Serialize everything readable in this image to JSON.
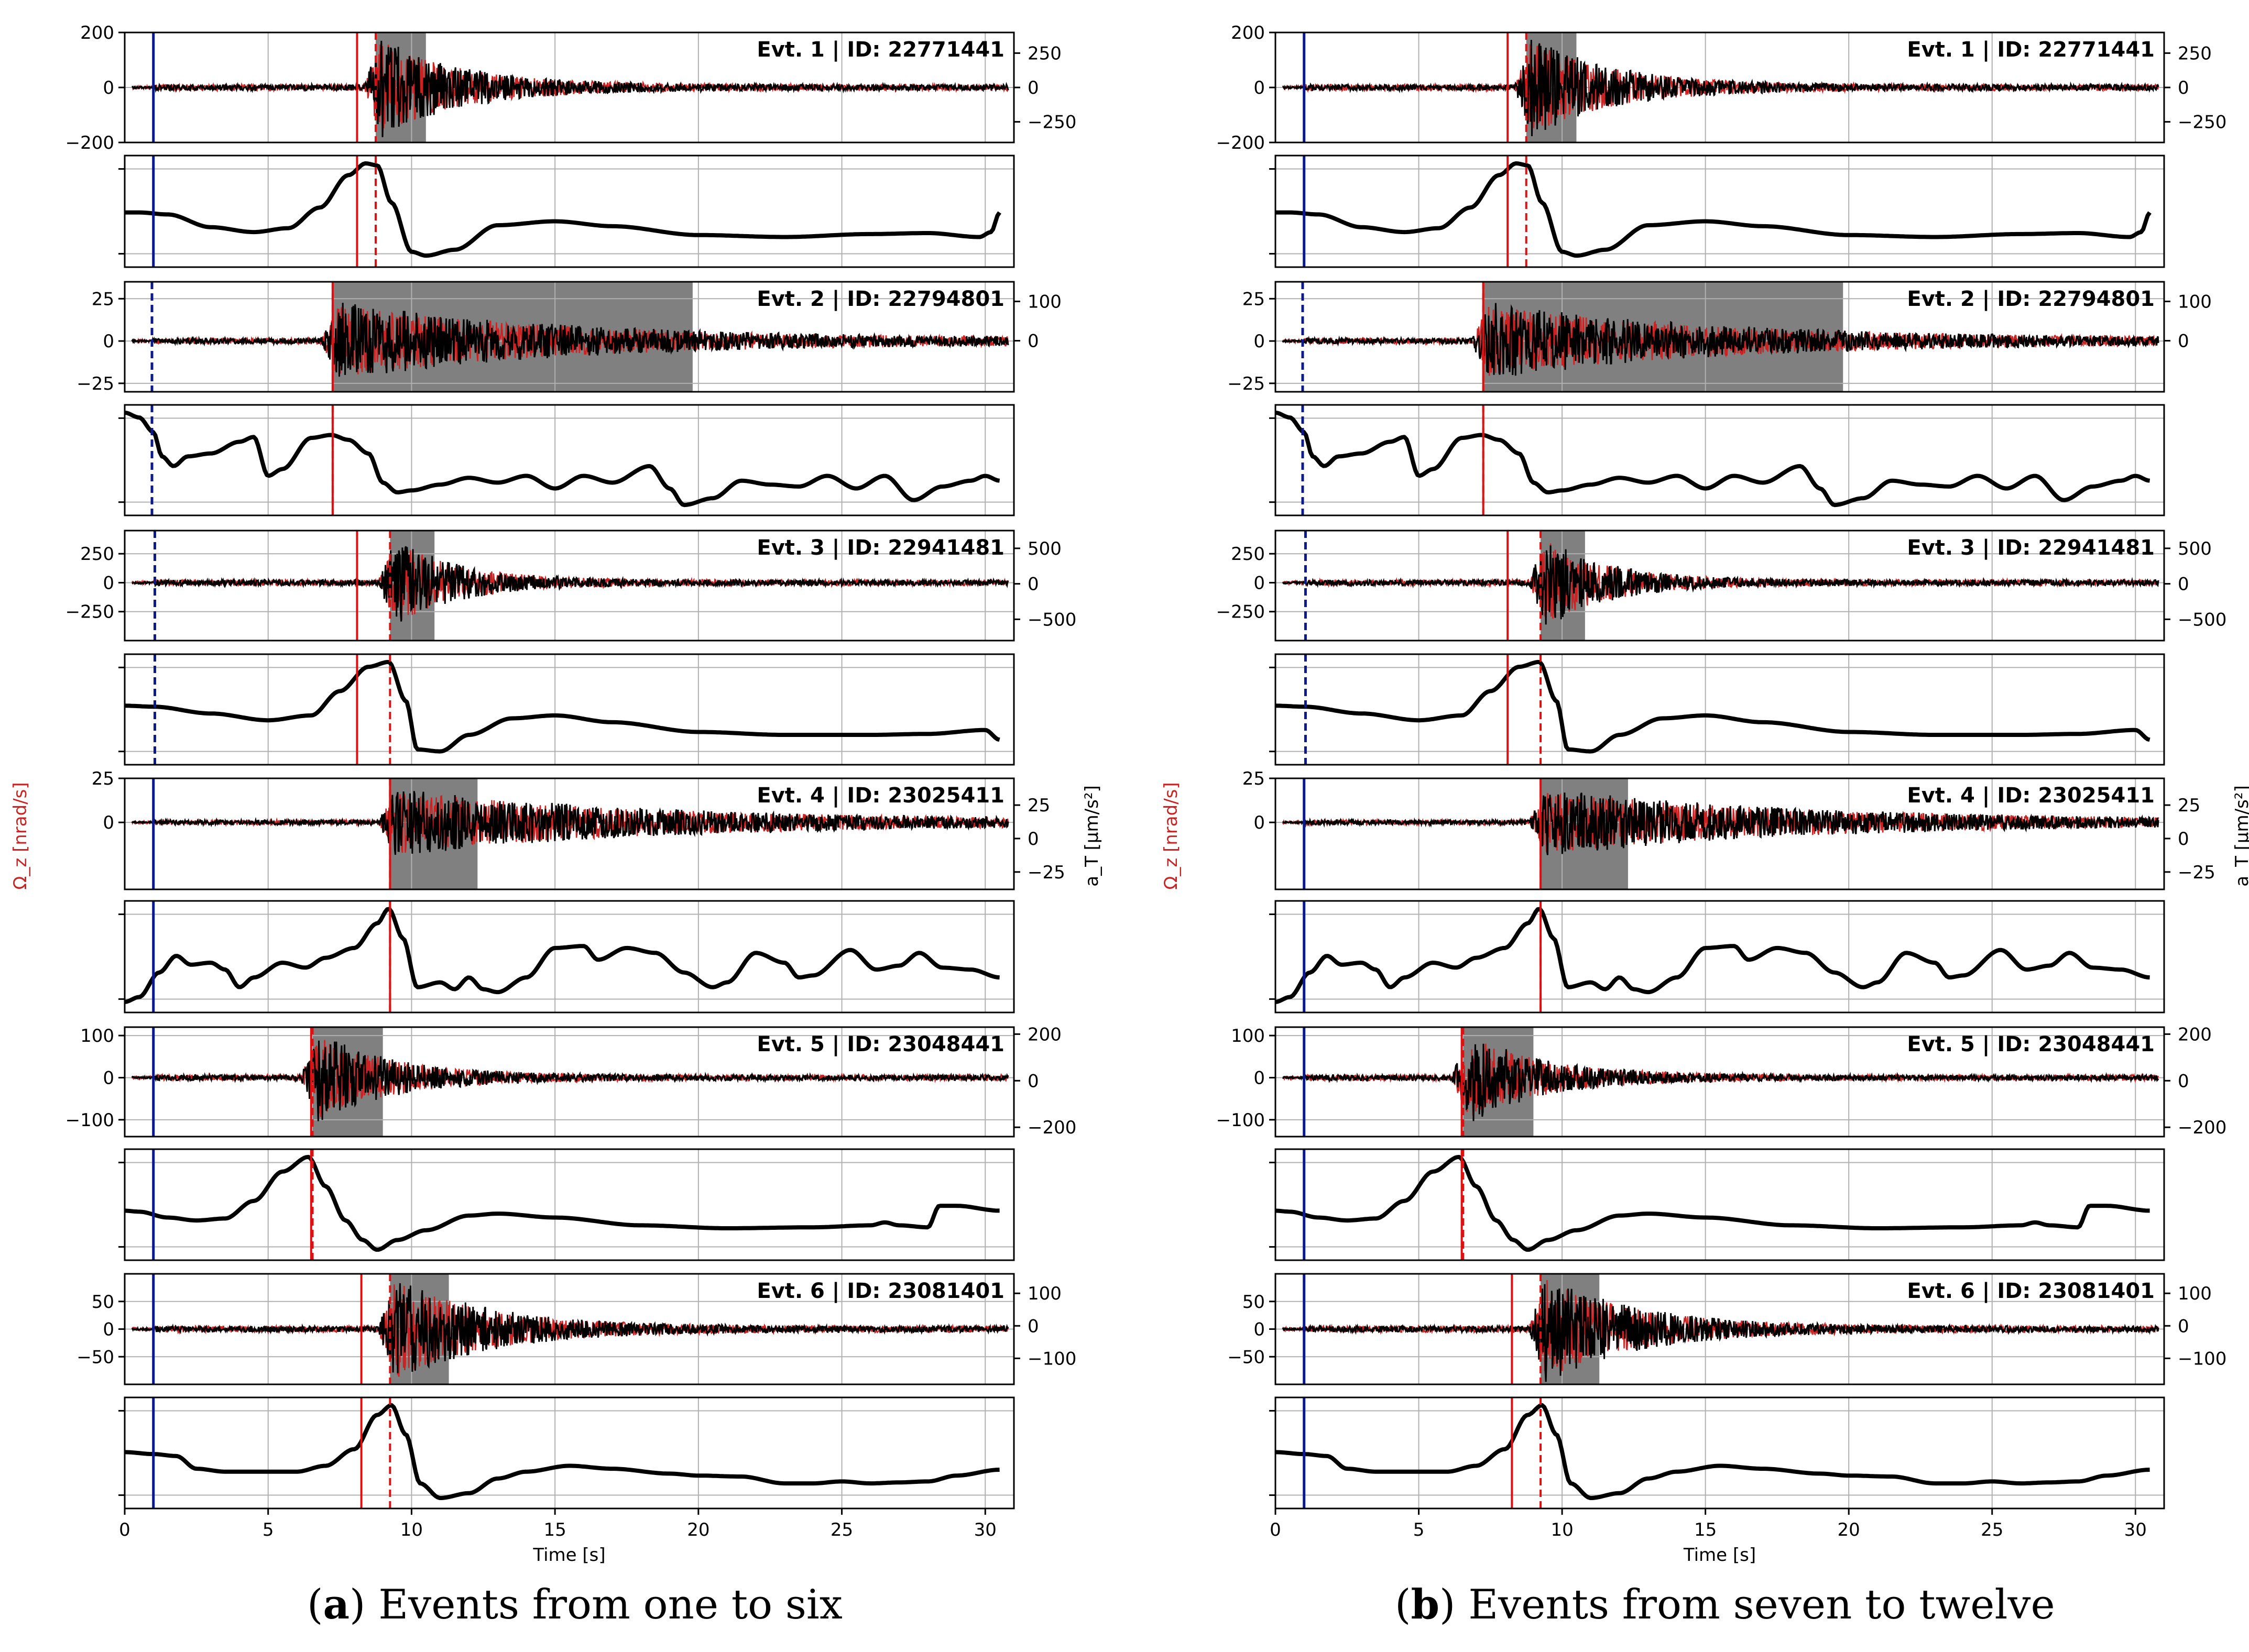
{
  "figure": {
    "xlabel": "Time [s]",
    "xlim": [
      0,
      31
    ],
    "xticks": [
      0,
      5,
      10,
      15,
      20,
      25,
      30
    ],
    "ylabel_left": "Ω_z [nrad/s]",
    "ylabel_right": "a_T [µm/s²]",
    "colors": {
      "rotation": "#cc2222",
      "acceleration": "#000000",
      "window": "#808080",
      "p_marker": "#0a1a8c",
      "s_marker": "#dd1111",
      "grid": "#b0b0b0"
    }
  },
  "captions": {
    "a": {
      "letter": "a",
      "text": " Events from one to six"
    },
    "b": {
      "letter": "b",
      "text": " Events from seven to twelve"
    }
  },
  "chart_data": {
    "type": "line",
    "panels": [
      "a",
      "b"
    ],
    "events": [
      {
        "label": "Evt. 1 | ID: 22771441",
        "left_ylim": [
          -200,
          200
        ],
        "left_ticks": [
          -200,
          0,
          200
        ],
        "left_tick_labels": [
          "−200",
          "0",
          "200"
        ],
        "right_ylim": [
          -400,
          400
        ],
        "right_ticks": [
          -250,
          0,
          250
        ],
        "right_tick_labels": [
          "−250",
          "0",
          "250"
        ],
        "p_onset": 1.0,
        "p_dashed": false,
        "s_marker": 8.1,
        "peak": 8.75,
        "window": [
          8.75,
          10.5
        ],
        "amp": 0.85,
        "decay": 2.8,
        "coh": [
          [
            0,
            0.5
          ],
          [
            0.5,
            0.5
          ],
          [
            1.5,
            0.48
          ],
          [
            3,
            0.35
          ],
          [
            4.5,
            0.3
          ],
          [
            5.7,
            0.34
          ],
          [
            6.8,
            0.55
          ],
          [
            7.8,
            0.88
          ],
          [
            8.4,
            1.0
          ],
          [
            8.8,
            0.98
          ],
          [
            9.3,
            0.6
          ],
          [
            10,
            0.1
          ],
          [
            10.5,
            0.06
          ],
          [
            11.5,
            0.12
          ],
          [
            13,
            0.37
          ],
          [
            15,
            0.41
          ],
          [
            17,
            0.36
          ],
          [
            20,
            0.27
          ],
          [
            23,
            0.25
          ],
          [
            26,
            0.28
          ],
          [
            28,
            0.29
          ],
          [
            29.8,
            0.25
          ],
          [
            30.2,
            0.3
          ],
          [
            30.5,
            0.5
          ]
        ]
      },
      {
        "label": "Evt. 2 | ID: 22794801",
        "left_ylim": [
          -30,
          35
        ],
        "left_ticks": [
          -25,
          0,
          25
        ],
        "left_tick_labels": [
          "−25",
          "0",
          "25"
        ],
        "right_ylim": [
          -130,
          150
        ],
        "right_ticks": [
          0,
          100
        ],
        "right_tick_labels": [
          "0",
          "100"
        ],
        "p_onset": 0.95,
        "p_dashed": true,
        "s_marker": 7.25,
        "peak": 7.25,
        "window": [
          7.25,
          19.8
        ],
        "amp": 0.7,
        "decay": 8,
        "coh": [
          [
            0,
            1.0
          ],
          [
            0.5,
            0.95
          ],
          [
            1,
            0.8
          ],
          [
            1.3,
            0.55
          ],
          [
            1.7,
            0.45
          ],
          [
            2.2,
            0.55
          ],
          [
            3,
            0.58
          ],
          [
            4,
            0.7
          ],
          [
            4.5,
            0.75
          ],
          [
            5,
            0.35
          ],
          [
            5.5,
            0.42
          ],
          [
            6.5,
            0.74
          ],
          [
            7.2,
            0.77
          ],
          [
            7.8,
            0.72
          ],
          [
            8.5,
            0.58
          ],
          [
            9,
            0.28
          ],
          [
            9.5,
            0.18
          ],
          [
            10,
            0.2
          ],
          [
            11,
            0.26
          ],
          [
            12,
            0.33
          ],
          [
            13,
            0.28
          ],
          [
            14,
            0.35
          ],
          [
            15,
            0.22
          ],
          [
            16,
            0.35
          ],
          [
            17,
            0.28
          ],
          [
            18.3,
            0.45
          ],
          [
            19,
            0.22
          ],
          [
            19.5,
            0.05
          ],
          [
            20.5,
            0.12
          ],
          [
            21.5,
            0.3
          ],
          [
            22.5,
            0.26
          ],
          [
            23.5,
            0.24
          ],
          [
            24.5,
            0.35
          ],
          [
            25.5,
            0.22
          ],
          [
            26.5,
            0.35
          ],
          [
            27.5,
            0.1
          ],
          [
            28.5,
            0.24
          ],
          [
            29.5,
            0.3
          ],
          [
            30,
            0.35
          ],
          [
            30.5,
            0.3
          ]
        ]
      },
      {
        "label": "Evt. 3 | ID: 22941481",
        "left_ylim": [
          -500,
          450
        ],
        "left_ticks": [
          -250,
          0,
          250
        ],
        "left_tick_labels": [
          "−250",
          "0",
          "250"
        ],
        "right_ylim": [
          -800,
          750
        ],
        "right_ticks": [
          -500,
          0,
          500
        ],
        "right_tick_labels": [
          "−500",
          "0",
          "500"
        ],
        "p_onset": 1.05,
        "p_dashed": true,
        "s_marker": 8.1,
        "peak": 9.25,
        "window": [
          9.25,
          10.8
        ],
        "amp": 0.8,
        "decay": 2.2,
        "coh": [
          [
            0,
            0.55
          ],
          [
            1,
            0.54
          ],
          [
            3,
            0.47
          ],
          [
            5,
            0.4
          ],
          [
            6.5,
            0.45
          ],
          [
            7.5,
            0.7
          ],
          [
            8.5,
            0.95
          ],
          [
            9.2,
            1.0
          ],
          [
            9.8,
            0.6
          ],
          [
            10.2,
            0.1
          ],
          [
            11,
            0.08
          ],
          [
            12,
            0.25
          ],
          [
            13.5,
            0.42
          ],
          [
            15,
            0.45
          ],
          [
            17,
            0.38
          ],
          [
            20,
            0.28
          ],
          [
            23,
            0.25
          ],
          [
            26,
            0.25
          ],
          [
            28,
            0.26
          ],
          [
            30,
            0.3
          ],
          [
            30.5,
            0.2
          ]
        ]
      },
      {
        "label": "Evt. 4 | ID: 23025411",
        "left_ylim": [
          -38,
          25
        ],
        "left_ticks": [
          0,
          25
        ],
        "left_tick_labels": [
          "0",
          "25"
        ],
        "right_ylim": [
          -38,
          45
        ],
        "right_ticks": [
          -25,
          0,
          25
        ],
        "right_tick_labels": [
          "−25",
          "0",
          "25"
        ],
        "p_onset": 1.0,
        "p_dashed": false,
        "s_marker": 9.25,
        "peak": 9.25,
        "window": [
          9.25,
          12.3
        ],
        "amp": 0.7,
        "decay": 9,
        "coh": [
          [
            0,
            0.05
          ],
          [
            0.5,
            0.1
          ],
          [
            1.2,
            0.35
          ],
          [
            1.8,
            0.52
          ],
          [
            2.3,
            0.43
          ],
          [
            3,
            0.45
          ],
          [
            3.5,
            0.38
          ],
          [
            4,
            0.2
          ],
          [
            4.5,
            0.3
          ],
          [
            5.5,
            0.45
          ],
          [
            6.3,
            0.4
          ],
          [
            7,
            0.5
          ],
          [
            8,
            0.6
          ],
          [
            8.8,
            0.85
          ],
          [
            9.2,
            1.0
          ],
          [
            9.7,
            0.7
          ],
          [
            10.2,
            0.2
          ],
          [
            11,
            0.25
          ],
          [
            11.5,
            0.18
          ],
          [
            12,
            0.3
          ],
          [
            12.5,
            0.18
          ],
          [
            13,
            0.15
          ],
          [
            14,
            0.3
          ],
          [
            15,
            0.6
          ],
          [
            16,
            0.62
          ],
          [
            16.5,
            0.48
          ],
          [
            17.5,
            0.6
          ],
          [
            18.5,
            0.55
          ],
          [
            19.5,
            0.35
          ],
          [
            20.5,
            0.2
          ],
          [
            21,
            0.25
          ],
          [
            22,
            0.55
          ],
          [
            23,
            0.45
          ],
          [
            23.5,
            0.3
          ],
          [
            24,
            0.32
          ],
          [
            25.3,
            0.58
          ],
          [
            26.2,
            0.38
          ],
          [
            27,
            0.42
          ],
          [
            27.7,
            0.55
          ],
          [
            28.5,
            0.4
          ],
          [
            29.5,
            0.38
          ],
          [
            30.5,
            0.3
          ]
        ]
      },
      {
        "label": "Evt. 5 | ID: 23048441",
        "left_ylim": [
          -140,
          120
        ],
        "left_ticks": [
          -100,
          0,
          100
        ],
        "left_tick_labels": [
          "−100",
          "0",
          "100"
        ],
        "right_ylim": [
          -240,
          230
        ],
        "right_ticks": [
          -200,
          0,
          200
        ],
        "right_tick_labels": [
          "−200",
          "0",
          "200"
        ],
        "p_onset": 1.0,
        "p_dashed": false,
        "s_marker": 6.5,
        "peak": 6.55,
        "window": [
          6.55,
          9.0
        ],
        "amp": 0.85,
        "decay": 2.6,
        "coh": [
          [
            0,
            0.45
          ],
          [
            0.5,
            0.44
          ],
          [
            1.5,
            0.38
          ],
          [
            2.5,
            0.35
          ],
          [
            3.5,
            0.37
          ],
          [
            4.5,
            0.55
          ],
          [
            5.5,
            0.85
          ],
          [
            6.4,
            1.0
          ],
          [
            7,
            0.7
          ],
          [
            7.7,
            0.35
          ],
          [
            8.3,
            0.15
          ],
          [
            8.8,
            0.05
          ],
          [
            9.5,
            0.15
          ],
          [
            10.5,
            0.25
          ],
          [
            12,
            0.4
          ],
          [
            13,
            0.42
          ],
          [
            15,
            0.38
          ],
          [
            18,
            0.3
          ],
          [
            21,
            0.27
          ],
          [
            24,
            0.28
          ],
          [
            26,
            0.3
          ],
          [
            26.5,
            0.33
          ],
          [
            27,
            0.3
          ],
          [
            28,
            0.28
          ],
          [
            28.4,
            0.5
          ],
          [
            29,
            0.5
          ],
          [
            30.5,
            0.45
          ]
        ]
      },
      {
        "label": "Evt. 6 | ID: 23081401",
        "left_ylim": [
          -100,
          100
        ],
        "left_ticks": [
          -50,
          0,
          50
        ],
        "left_tick_labels": [
          "−50",
          "0",
          "50"
        ],
        "right_ylim": [
          -180,
          160
        ],
        "right_ticks": [
          -100,
          0,
          100
        ],
        "right_tick_labels": [
          "−100",
          "0",
          "100"
        ],
        "p_onset": 1.0,
        "p_dashed": false,
        "s_marker": 8.25,
        "peak": 9.25,
        "window": [
          9.25,
          11.3
        ],
        "amp": 0.9,
        "decay": 3.2,
        "coh": [
          [
            0,
            0.52
          ],
          [
            1,
            0.5
          ],
          [
            1.8,
            0.48
          ],
          [
            2.5,
            0.35
          ],
          [
            3.5,
            0.32
          ],
          [
            5,
            0.32
          ],
          [
            6,
            0.32
          ],
          [
            7,
            0.38
          ],
          [
            8,
            0.55
          ],
          [
            8.8,
            0.9
          ],
          [
            9.3,
            1.0
          ],
          [
            9.8,
            0.7
          ],
          [
            10.3,
            0.2
          ],
          [
            11,
            0.05
          ],
          [
            12,
            0.1
          ],
          [
            13,
            0.25
          ],
          [
            14,
            0.32
          ],
          [
            15.5,
            0.38
          ],
          [
            17,
            0.35
          ],
          [
            19,
            0.3
          ],
          [
            20,
            0.28
          ],
          [
            21.5,
            0.27
          ],
          [
            23,
            0.2
          ],
          [
            24,
            0.2
          ],
          [
            25,
            0.22
          ],
          [
            26,
            0.2
          ],
          [
            27,
            0.21
          ],
          [
            28,
            0.22
          ],
          [
            29,
            0.28
          ],
          [
            30.5,
            0.34
          ]
        ]
      }
    ],
    "panel_b_events": [
      {
        "label": "Evt. 1 | ID: 22771441"
      },
      {
        "label": "Evt. 2 | ID: 22794801"
      },
      {
        "label": "Evt. 3 | ID: 22941481"
      },
      {
        "label": "Evt. 4 | ID: 23025411"
      },
      {
        "label": "Evt. 5 | ID: 23048441"
      },
      {
        "label": "Evt. 6 | ID: 23081401"
      }
    ]
  }
}
